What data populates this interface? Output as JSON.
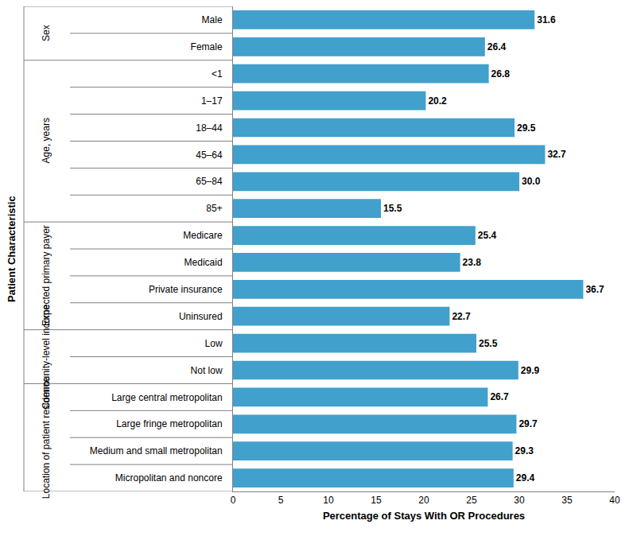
{
  "chart_data": {
    "type": "bar",
    "orientation": "horizontal",
    "xlabel": "Percentage of Stays With OR Procedures",
    "ylabel": "Patient Characteristic",
    "categories": [
      "Male",
      "Female",
      "<1",
      "1–17",
      "18–44",
      "45–64",
      "65–84",
      "85+",
      "Medicare",
      "Medicaid",
      "Private insurance",
      "Uninsured",
      "Low",
      "Not low",
      "Large central metropolitan",
      "Large fringe metropolitan",
      "Medium and small metropolitan",
      "Micropolitan and noncore"
    ],
    "category_groups": [
      "Sex",
      "Sex",
      "Age, years",
      "Age, years",
      "Age, years",
      "Age, years",
      "Age, years",
      "Age, years",
      "Expected primary payer",
      "Expected primary payer",
      "Expected primary payer",
      "Expected primary payer",
      "Community-level income",
      "Community-level income",
      "Location of patient residence",
      "Location of patient residence",
      "Location of patient residence",
      "Location of patient residence"
    ],
    "values": [
      31.6,
      26.4,
      26.8,
      20.2,
      29.5,
      32.7,
      30.0,
      15.5,
      25.4,
      23.8,
      36.7,
      22.7,
      25.5,
      29.9,
      26.7,
      29.7,
      29.3,
      29.4
    ],
    "value_labels": [
      "31.6",
      "26.4",
      "26.8",
      "20.2",
      "29.5",
      "32.7",
      "30.0",
      "15.5",
      "25.4",
      "23.8",
      "36.7",
      "22.7",
      "25.5",
      "29.9",
      "26.7",
      "29.7",
      "29.3",
      "29.4"
    ],
    "color": "#41a0cc",
    "xlim": [
      0,
      40
    ],
    "xticks": [
      0,
      5,
      10,
      15,
      20,
      25,
      30,
      35,
      40
    ],
    "grid": false,
    "data_labels": true
  }
}
